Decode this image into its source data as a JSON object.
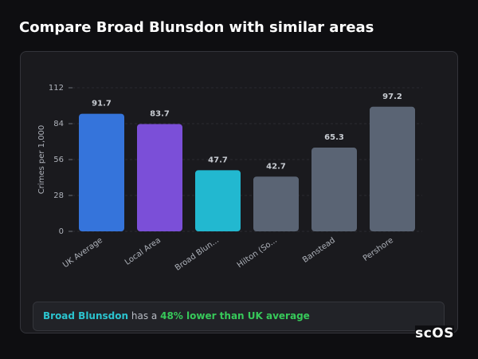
{
  "chart_data": {
    "type": "bar",
    "title": "Compare Broad Blunsdon with similar areas",
    "y_label": "Crimes per 1,000",
    "categories": [
      "UK Average",
      "Local Area",
      "Broad Blun...",
      "Hilton (So...",
      "Banstead",
      "Pershore"
    ],
    "values": [
      91.7,
      83.7,
      47.7,
      42.7,
      65.3,
      97.2
    ],
    "colors": [
      "#3574db",
      "#7b4fd8",
      "#22b8d0",
      "#5a6474",
      "#5a6474",
      "#5a6474"
    ],
    "ylim": [
      0,
      112
    ],
    "yticks": [
      0,
      28,
      56,
      84,
      112
    ],
    "grid": true
  },
  "summary": {
    "area": "Broad Blunsdon",
    "text": "has a",
    "highlight": "48% lower than UK average"
  },
  "logo": "scOS"
}
